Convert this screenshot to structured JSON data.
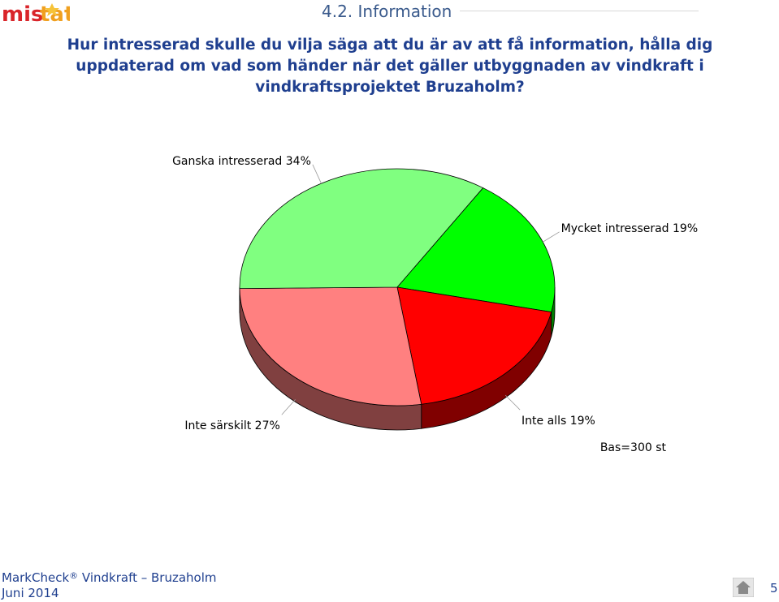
{
  "header": {
    "logo_text": "mistat",
    "section_title": "4.2. Information"
  },
  "question": "Hur intresserad skulle du vilja säga att du är av att få information, hålla dig uppdaterad om vad som händer när det gäller utbyggnaden av vindkraft i vindkraftsprojektet Bruzaholm?",
  "chart_data": {
    "type": "pie",
    "title": "Hur intresserad skulle du vilja säga att du är av att få information, hålla dig uppdaterad om vad som händer när det gäller utbyggnaden av vindkraft i vindkraftsprojektet Bruzaholm?",
    "slices": [
      {
        "label": "Mycket intresserad",
        "value": 19,
        "display": "Mycket intresserad  19%",
        "color": "#00ff00",
        "side_color": "#008000"
      },
      {
        "label": "Inte alls",
        "value": 19,
        "display": "Inte alls  19%",
        "color": "#ff0000",
        "side_color": "#800000"
      },
      {
        "label": "Inte särskilt",
        "value": 27,
        "display": "Inte särskilt  27%",
        "color": "#ff8080",
        "side_color": "#804040"
      },
      {
        "label": "Ganska intresserad",
        "value": 34,
        "display": "Ganska intresserad  34%",
        "color": "#80ff80",
        "side_color": "#408040"
      }
    ],
    "note": "Bas=300 st"
  },
  "footer": {
    "brand": "MarkCheck",
    "registered": "®",
    "project": " Vindkraft – Bruzaholm",
    "date": "Juni 2014",
    "page_number": "5"
  }
}
